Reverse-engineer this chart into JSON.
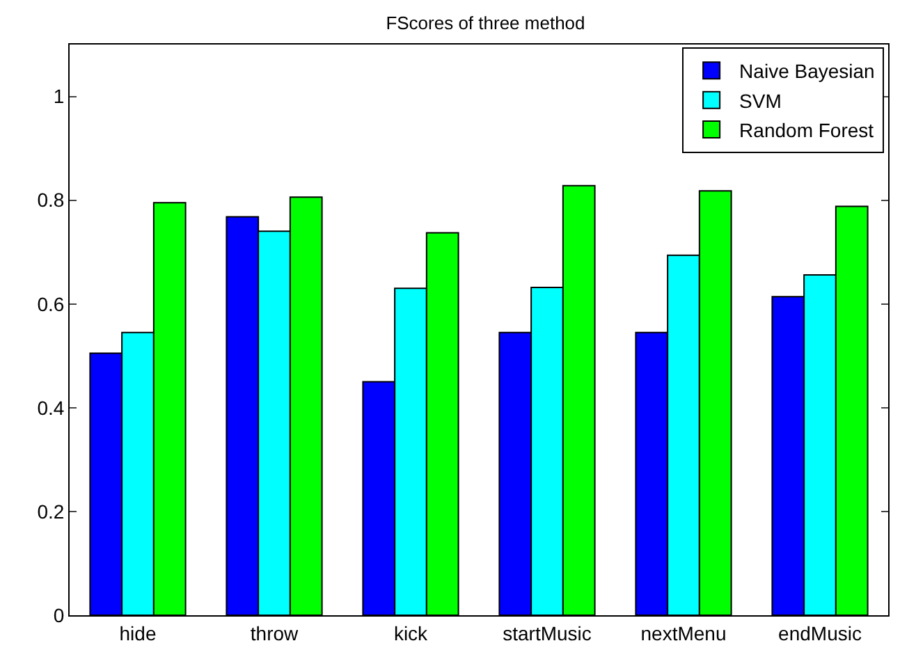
{
  "chart_data": {
    "type": "bar",
    "title": "FScores of three method",
    "categories": [
      "hide",
      "throw",
      "kick",
      "startMusic",
      "nextMenu",
      "endMusic"
    ],
    "series": [
      {
        "name": "Naive Bayesian",
        "color": "#0000ff",
        "values": [
          0.505,
          0.768,
          0.45,
          0.545,
          0.545,
          0.614
        ]
      },
      {
        "name": "SVM",
        "color": "#00ffff",
        "values": [
          0.545,
          0.74,
          0.63,
          0.632,
          0.694,
          0.656
        ]
      },
      {
        "name": "Random Forest",
        "color": "#00ff00",
        "values": [
          0.795,
          0.806,
          0.737,
          0.828,
          0.818,
          0.788
        ]
      }
    ],
    "ylim": [
      0,
      1.1
    ],
    "yticks": [
      0,
      0.2,
      0.4,
      0.6,
      0.8,
      1
    ],
    "grid": false,
    "legend": "top right"
  }
}
